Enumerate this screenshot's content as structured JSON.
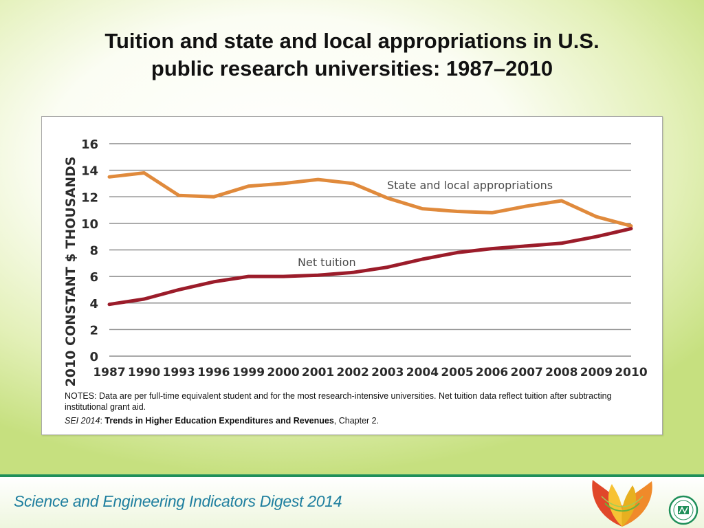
{
  "slide": {
    "title_line1": "Tuition and state and local appropriations in U.S.",
    "title_line2": "public research universities: 1987–2010",
    "notes": "NOTES: Data are per full-time equivalent student and for the most research-intensive universities. Net tuition data reflect tuition after subtracting institutional grant aid.",
    "source_italic": "SEI 2014",
    "source_colon": ": ",
    "source_bold": "Trends in Higher Education Expenditures and Revenues",
    "source_rest": ", Chapter 2.",
    "footer": "Science and Engineering Indicators Digest 2014",
    "logo_seal_text": "NATIONAL SCIENCE FOUNDATION NSB"
  },
  "colors": {
    "appropriations": "#e08a3c",
    "tuition": "#9b1c2a",
    "gridline": "#8c8c8c",
    "footer_text": "#1f7f9f"
  },
  "chart_data": {
    "type": "line",
    "categories": [
      "1987",
      "1990",
      "1993",
      "1996",
      "1999",
      "2000",
      "2001",
      "2002",
      "2003",
      "2004",
      "2005",
      "2006",
      "2007",
      "2008",
      "2009",
      "2010"
    ],
    "series": [
      {
        "name": "State and local appropriations",
        "values": [
          13.5,
          13.8,
          12.1,
          12.0,
          12.8,
          13.0,
          13.3,
          13.0,
          11.9,
          11.1,
          10.9,
          10.8,
          11.3,
          11.7,
          10.5,
          9.8
        ]
      },
      {
        "name": "Net tuition",
        "values": [
          3.9,
          4.3,
          5.0,
          5.6,
          6.0,
          6.0,
          6.1,
          6.3,
          6.7,
          7.3,
          7.8,
          8.1,
          8.3,
          8.5,
          9.0,
          9.6
        ]
      }
    ],
    "ylabel": "2010 CONSTANT $ THOUSANDS",
    "xlabel": "",
    "ylim": [
      0,
      16
    ],
    "yticks": [
      0,
      2,
      4,
      6,
      8,
      10,
      12,
      14,
      16
    ],
    "grid": true
  }
}
